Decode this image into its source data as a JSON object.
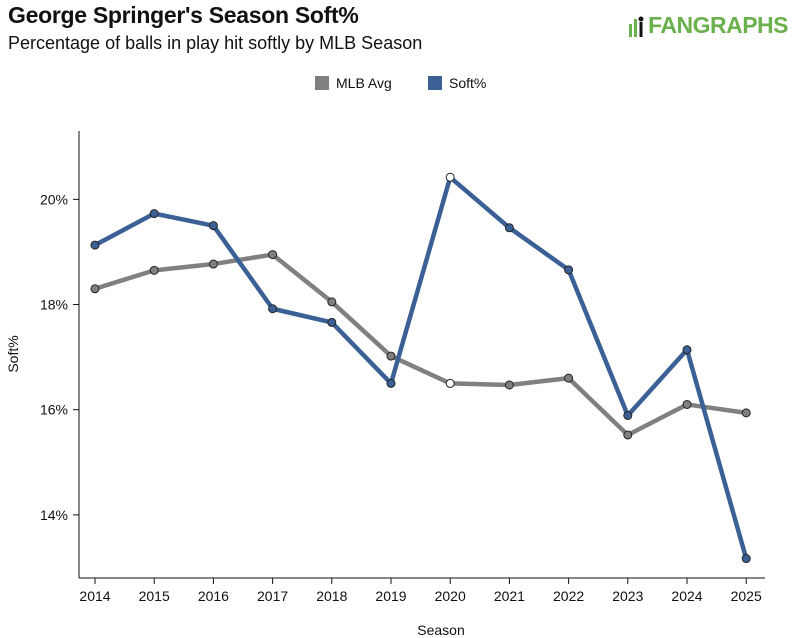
{
  "header": {
    "title": "George Springer's Season Soft%",
    "subtitle": "Percentage of balls in play hit softly by MLB Season"
  },
  "logo": {
    "text_a": "FAN",
    "text_b": "GRAPHS",
    "color": "#6ab04c"
  },
  "chart_data": {
    "type": "line",
    "title": "George Springer's Season Soft%",
    "subtitle": "Percentage of balls in play hit softly by MLB Season",
    "xlabel": "Season",
    "ylabel": "Soft%",
    "categories": [
      "2014",
      "2015",
      "2016",
      "2017",
      "2018",
      "2019",
      "2020",
      "2021",
      "2022",
      "2023",
      "2024",
      "2025"
    ],
    "ylim": [
      12.8,
      21.3
    ],
    "yticks": [
      14,
      16,
      18,
      20
    ],
    "ytick_labels": [
      "14%",
      "16%",
      "18%",
      "20%"
    ],
    "legend_position": "top-center",
    "grid": false,
    "series": [
      {
        "name": "MLB Avg",
        "color": "#808080",
        "values": [
          18.3,
          18.65,
          18.77,
          18.95,
          18.05,
          17.02,
          16.5,
          16.47,
          16.6,
          15.52,
          16.1,
          15.94
        ]
      },
      {
        "name": "Soft%",
        "color": "#3b6096",
        "values": [
          19.13,
          19.73,
          19.5,
          17.92,
          17.66,
          16.5,
          20.42,
          19.46,
          18.66,
          15.89,
          17.14,
          13.17
        ]
      }
    ],
    "hollow_points": [
      {
        "series": "MLB Avg",
        "x": "2020"
      },
      {
        "series": "Soft%",
        "x": "2020"
      }
    ]
  }
}
